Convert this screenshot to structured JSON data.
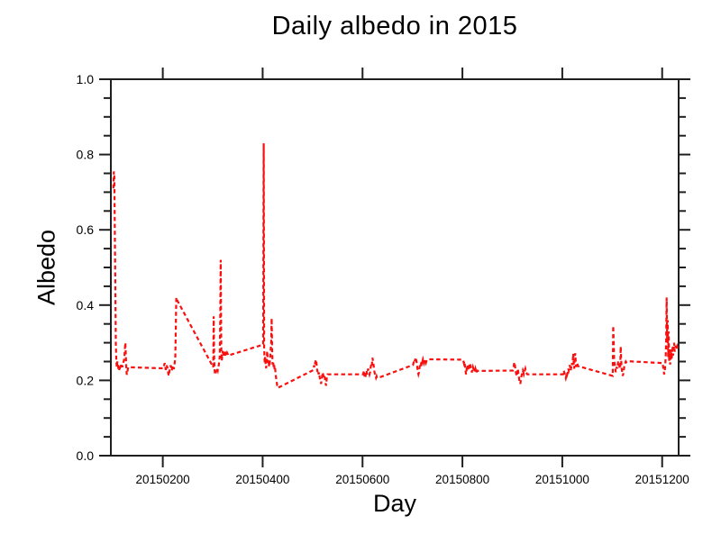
{
  "figure": {
    "title": "Daily albedo in 2015",
    "xlabel": "Day",
    "ylabel": "Albedo",
    "background": "#ffffff",
    "axis_color": "#1f1f1f",
    "text_color": "#000000"
  },
  "chart_data": {
    "type": "line",
    "title": "Daily albedo in 2015",
    "xlabel": "Day",
    "ylabel": "Albedo",
    "x_format": "numeric date YYYYMMDD, year 2015; day value = 20150000 + month*100 + day_of_month",
    "xlim": [
      20150096,
      20151233
    ],
    "ylim": [
      0.0,
      1.0
    ],
    "grid": false,
    "legend": null,
    "xticks": {
      "values": [
        20150200,
        20150400,
        20150600,
        20150800,
        20151000,
        20151200
      ],
      "labels": [
        "20150200",
        "20150400",
        "20150600",
        "20150800",
        "20151000",
        "20151200"
      ]
    },
    "yticks": {
      "values": [
        0.0,
        0.2,
        0.4,
        0.6,
        0.8,
        1.0
      ],
      "labels": [
        "0.0",
        "0.2",
        "0.4",
        "0.6",
        "0.8",
        "1.0"
      ],
      "minor_step": 0.05
    },
    "series": [
      {
        "name": "daily-albedo-2015",
        "color": "#fa0f0f",
        "style": "dashed",
        "line_width": 2.2,
        "months": [
          {
            "month": 1,
            "values": [
              0.71,
              0.755,
              0.74,
              0.6,
              0.44,
              0.3,
              0.25,
              0.235,
              0.25,
              0.245,
              0.232,
              0.225,
              0.23,
              0.242,
              0.235,
              0.238,
              0.245,
              0.24,
              0.235,
              0.242,
              0.248,
              0.252,
              0.26,
              0.282,
              0.3,
              0.268,
              0.228,
              0.215,
              0.222,
              0.23,
              0.235
            ]
          },
          {
            "month": 2,
            "values": [
              0.232,
              0.236,
              0.242,
              0.246,
              0.238,
              0.228,
              0.232,
              0.24,
              0.235,
              0.226,
              0.218,
              0.212,
              0.222,
              0.23,
              0.236,
              0.24,
              0.232,
              0.226,
              0.234,
              0.24,
              0.236,
              0.23,
              0.238,
              0.248,
              0.26,
              0.33,
              0.42,
              0.415
            ]
          },
          {
            "month": 3,
            "values": [
              0.235,
              0.37,
              0.252,
              0.222,
              0.215,
              0.22,
              0.226,
              0.221,
              0.23,
              0.226,
              0.234,
              0.24,
              0.25,
              0.262,
              0.35,
              0.52,
              0.29,
              0.252,
              0.265,
              0.278,
              0.266,
              0.272,
              0.28,
              0.27,
              0.262,
              0.27,
              0.276,
              0.268,
              0.273,
              0.27,
              0.266
            ]
          },
          {
            "month": 4,
            "values": [
              0.295,
              0.83,
              0.285,
              0.246,
              0.262,
              0.242,
              0.232,
              0.25,
              0.278,
              0.26,
              0.246,
              0.252,
              0.236,
              0.242,
              0.26,
              0.28,
              0.3,
              0.365,
              0.275,
              0.242,
              0.25,
              0.236,
              0.242,
              0.227,
              0.232,
              0.216,
              0.206,
              0.196,
              0.187,
              0.18
            ]
          },
          {
            "month": 5,
            "values": [
              0.227,
              0.232,
              0.24,
              0.235,
              0.246,
              0.252,
              0.255,
              0.242,
              0.23,
              0.222,
              0.226,
              0.216,
              0.221,
              0.21,
              0.201,
              0.196,
              0.191,
              0.201,
              0.211,
              0.221,
              0.216,
              0.211,
              0.206,
              0.211,
              0.201,
              0.192,
              0.186,
              0.201,
              0.211,
              0.216,
              0.216
            ]
          },
          {
            "month": 6,
            "values": [
              0.216,
              0.221,
              0.226,
              0.211,
              0.206,
              0.211,
              0.221,
              0.226,
              0.216,
              0.221,
              0.231,
              0.226,
              0.221,
              0.216,
              0.221,
              0.231,
              0.241,
              0.236,
              0.246,
              0.26,
              0.251,
              0.241,
              0.231,
              0.221,
              0.216,
              0.211,
              0.207,
              0.211,
              0.207,
              0.206
            ]
          },
          {
            "month": 7,
            "values": [
              0.241,
              0.246,
              0.251,
              0.256,
              0.251,
              0.261,
              0.258,
              0.251,
              0.241,
              0.231,
              0.221,
              0.216,
              0.221,
              0.231,
              0.241,
              0.236,
              0.241,
              0.251,
              0.246,
              0.251,
              0.256,
              0.251,
              0.246,
              0.251,
              0.256,
              0.252,
              0.247,
              0.251,
              0.253,
              0.255,
              0.256
            ]
          },
          {
            "month": 8,
            "values": [
              0.255,
              0.251,
              0.246,
              0.251,
              0.241,
              0.231,
              0.216,
              0.221,
              0.236,
              0.241,
              0.231,
              0.226,
              0.231,
              0.241,
              0.246,
              0.241,
              0.231,
              0.226,
              0.221,
              0.231,
              0.236,
              0.231,
              0.226,
              0.221,
              0.226,
              0.231,
              0.226,
              0.221,
              0.226,
              0.226,
              0.225
            ]
          },
          {
            "month": 9,
            "values": [
              0.226,
              0.231,
              0.241,
              0.248,
              0.241,
              0.231,
              0.221,
              0.216,
              0.211,
              0.221,
              0.231,
              0.221,
              0.211,
              0.201,
              0.196,
              0.191,
              0.201,
              0.211,
              0.216,
              0.221,
              0.226,
              0.221,
              0.216,
              0.221,
              0.226,
              0.231,
              0.226,
              0.221,
              0.218,
              0.216
            ]
          },
          {
            "month": 10,
            "values": [
              0.216,
              0.221,
              0.226,
              0.221,
              0.216,
              0.211,
              0.206,
              0.211,
              0.221,
              0.216,
              0.221,
              0.231,
              0.226,
              0.231,
              0.241,
              0.231,
              0.226,
              0.236,
              0.246,
              0.241,
              0.251,
              0.271,
              0.241,
              0.231,
              0.261,
              0.272,
              0.246,
              0.236,
              0.241,
              0.246,
              0.238
            ]
          },
          {
            "month": 11,
            "values": [
              0.212,
              0.345,
              0.3,
              0.252,
              0.242,
              0.232,
              0.222,
              0.226,
              0.236,
              0.231,
              0.241,
              0.251,
              0.246,
              0.241,
              0.231,
              0.236,
              0.29,
              0.252,
              0.232,
              0.222,
              0.212,
              0.216,
              0.226,
              0.236,
              0.241,
              0.246,
              0.25,
              0.248,
              0.25,
              0.251
            ]
          },
          {
            "month": 12,
            "values": [
              0.246,
              0.236,
              0.226,
              0.216,
              0.222,
              0.236,
              0.262,
              0.3,
              0.42,
              0.3,
              0.36,
              0.262,
              0.33,
              0.252,
              0.282,
              0.242,
              0.262,
              0.282,
              0.256,
              0.272,
              0.292,
              0.266,
              0.282,
              0.3,
              0.276,
              0.286,
              0.292,
              0.282,
              0.286,
              0.29,
              0.285
            ]
          }
        ]
      }
    ]
  }
}
